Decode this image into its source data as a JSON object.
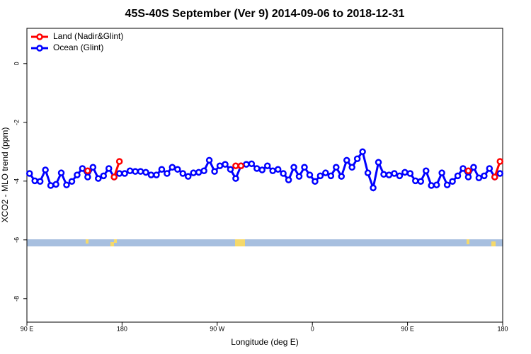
{
  "chart_data": {
    "type": "line",
    "title": "45S-40S September (Ver 9)   2014-09-06 to 2018-12-31",
    "x_label": "Longitude (deg E)",
    "y_label": "XCO2 - MLO trend (ppm)",
    "xlim": [
      90,
      540
    ],
    "ylim": [
      -8.8,
      1.2
    ],
    "xticks": [
      {
        "value": 90,
        "label": "90 E"
      },
      180,
      {
        "value": 270,
        "label": "90 W"
      },
      {
        "value": 360,
        "label": "0"
      },
      {
        "value": 450,
        "label": "90 E"
      },
      {
        "value": 540,
        "label": "180"
      }
    ],
    "yticks": [
      0,
      -2,
      -4,
      -6,
      -8
    ],
    "legend": "top-left",
    "x": [
      92.5,
      97.5,
      102.5,
      107.5,
      112.5,
      117.5,
      122.5,
      127.5,
      132.5,
      137.5,
      142.5,
      147.5,
      152.5,
      157.5,
      162.5,
      167.5,
      172.5,
      177.5,
      182.5,
      187.5,
      192.5,
      197.5,
      202.5,
      207.5,
      212.5,
      217.5,
      222.5,
      227.5,
      232.5,
      237.5,
      242.5,
      247.5,
      252.5,
      257.5,
      262.5,
      267.5,
      272.5,
      277.5,
      282.5,
      287.5,
      292.5,
      297.5,
      302.5,
      307.5,
      312.5,
      317.5,
      322.5,
      327.5,
      332.5,
      337.5,
      342.5,
      347.5,
      352.5,
      357.5,
      362.5,
      367.5,
      372.5,
      377.5,
      382.5,
      387.5,
      392.5,
      397.5,
      402.5,
      407.5,
      412.5,
      417.5,
      422.5,
      427.5,
      432.5,
      437.5,
      442.5,
      447.5,
      452.5,
      457.5,
      462.5,
      467.5,
      472.5,
      477.5,
      482.5,
      487.5,
      492.5,
      497.5,
      502.5,
      507.5,
      512.5,
      517.5,
      522.5,
      527.5,
      532.5,
      537.5
    ],
    "series": [
      {
        "name": "Land (Nadir&Glint)",
        "color": "#ff0000",
        "values": [
          null,
          null,
          null,
          null,
          null,
          null,
          null,
          null,
          null,
          null,
          null,
          -3.65,
          null,
          null,
          null,
          null,
          -3.86,
          -3.33,
          null,
          null,
          null,
          null,
          null,
          null,
          null,
          null,
          null,
          null,
          null,
          null,
          null,
          null,
          null,
          null,
          null,
          null,
          null,
          null,
          null,
          -3.48,
          -3.48,
          null,
          null,
          null,
          null,
          null,
          null,
          null,
          null,
          null,
          null,
          null,
          null,
          null,
          null,
          null,
          null,
          null,
          null,
          null,
          null,
          null,
          null,
          null,
          null,
          null,
          null,
          null,
          null,
          null,
          null,
          null,
          null,
          null,
          null,
          null,
          null,
          null,
          null,
          null,
          null,
          null,
          null,
          -3.65,
          null,
          null,
          null,
          null,
          -3.86,
          -3.33
        ]
      },
      {
        "name": "Ocean (Glint)",
        "color": "#0000ff",
        "values": [
          -3.74,
          -3.99,
          -4.01,
          -3.62,
          -4.15,
          -4.11,
          -3.72,
          -4.13,
          -4.01,
          -3.79,
          -3.57,
          -3.86,
          -3.53,
          -3.91,
          -3.82,
          -3.57,
          -3.86,
          -3.74,
          -3.74,
          -3.65,
          -3.67,
          -3.67,
          -3.7,
          -3.79,
          -3.79,
          -3.6,
          -3.74,
          -3.53,
          -3.6,
          -3.74,
          -3.84,
          -3.72,
          -3.7,
          -3.65,
          -3.29,
          -3.67,
          -3.48,
          -3.43,
          -3.6,
          -3.91,
          -3.48,
          -3.43,
          -3.41,
          -3.57,
          -3.62,
          -3.48,
          -3.65,
          -3.6,
          -3.74,
          -3.96,
          -3.53,
          -3.84,
          -3.53,
          -3.79,
          -4.01,
          -3.82,
          -3.72,
          -3.82,
          -3.53,
          -3.84,
          -3.29,
          -3.53,
          -3.24,
          -3.0,
          -3.72,
          -4.23,
          -3.36,
          -3.77,
          -3.79,
          -3.74,
          -3.82,
          -3.7,
          -3.74,
          -3.99,
          -4.01,
          -3.65,
          -4.15,
          -4.13,
          -3.72,
          -4.13,
          -4.01,
          -3.82,
          -3.57,
          -3.86,
          -3.53,
          -3.89,
          -3.82,
          -3.57,
          -3.86,
          -3.74
        ]
      }
    ]
  }
}
